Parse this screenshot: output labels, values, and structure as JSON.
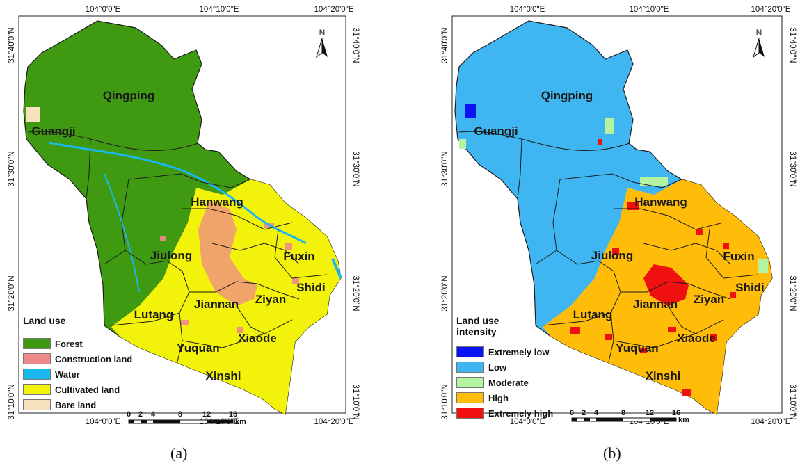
{
  "maps": [
    {
      "id": "a",
      "panel_label": "(a)",
      "top_ticks": [
        "104°0'0\"E",
        "104°10'0\"E",
        "104°20'0\"E"
      ],
      "bottom_ticks": [
        "104°0'0\"E",
        "104°10'0\"E",
        "104°20'0\"E"
      ],
      "left_ticks": [
        "31°40'0\"N",
        "31°30'0\"N",
        "31°20'0\"N",
        "31°10'0\"N"
      ],
      "right_ticks": [
        "31°40'0\"N",
        "31°30'0\"N",
        "31°20'0\"N",
        "31°10'0\"N"
      ],
      "north": "N",
      "scale_labels": [
        "0",
        "2",
        "4",
        "8",
        "12",
        "16"
      ],
      "scale_unit": "km",
      "legend_title": "Land use",
      "legend": [
        {
          "label": "Forest",
          "color": "#3f9a12"
        },
        {
          "label": "Construction land",
          "color": "#f08a8a"
        },
        {
          "label": "Water",
          "color": "#1ab8ee"
        },
        {
          "label": "Cultivated land",
          "color": "#f3f20a"
        },
        {
          "label": "Bare land",
          "color": "#f7e2be"
        }
      ],
      "colors": {
        "north_zone": "#3f9a12",
        "south_zone": "#f3f20a",
        "urban_core": "#f08a8a",
        "edge": "#1ab8ee"
      }
    },
    {
      "id": "b",
      "panel_label": "(b)",
      "top_ticks": [
        "104°0'0\"E",
        "104°10'0\"E",
        "104°20'0\"E"
      ],
      "bottom_ticks": [
        "104°0'0\"E",
        "104°10'0\"E",
        "104°20'0\"E"
      ],
      "left_ticks": [
        "31°40'0\"N",
        "31°30'0\"N",
        "31°20'0\"N",
        "31°10'0\"N"
      ],
      "right_ticks": [
        "31°40'0\"N",
        "31°30'0\"N",
        "31°20'0\"N",
        "31°10'0\"N"
      ],
      "north": "N",
      "scale_labels": [
        "0",
        "2",
        "4",
        "8",
        "12",
        "16"
      ],
      "scale_unit": "km",
      "legend_title": "Land use intensity",
      "legend": [
        {
          "label": "Extremely low",
          "color": "#0a14f0"
        },
        {
          "label": "Low",
          "color": "#3fb6f2"
        },
        {
          "label": "Moderate",
          "color": "#b4f3a0"
        },
        {
          "label": "High",
          "color": "#ffbc08"
        },
        {
          "label": "Extremely high",
          "color": "#f01010"
        }
      ],
      "colors": {
        "north_zone": "#3fb6f2",
        "south_zone": "#ffbc08",
        "urban_core": "#f01010",
        "edge": "#b4f3a0"
      }
    }
  ],
  "towns": [
    "Qingping",
    "Guangji",
    "Hanwang",
    "Jiulong",
    "Fuxin",
    "Shidi",
    "Jiannan",
    "Ziyan",
    "Lutang",
    "Xiaode",
    "Yuquan",
    "Xinshi"
  ]
}
